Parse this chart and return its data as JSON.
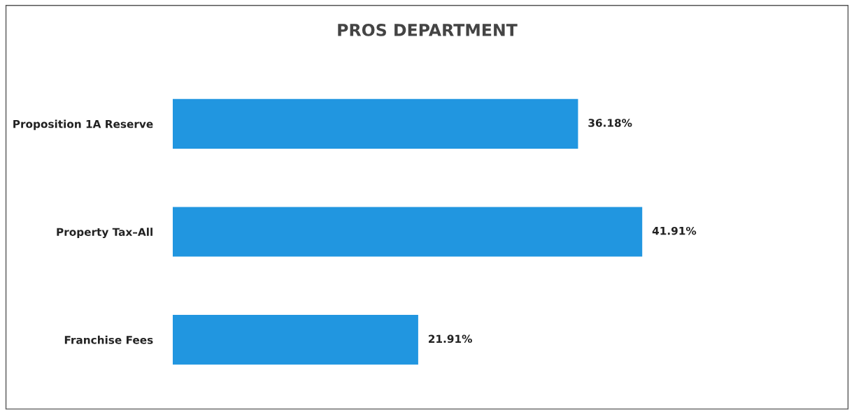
{
  "chart_data": {
    "type": "bar",
    "orientation": "horizontal",
    "title": "PROS DEPARTMENT",
    "categories": [
      "Proposition 1A Reserve",
      "Property Tax–All",
      "Franchise Fees"
    ],
    "values": [
      36.18,
      41.91,
      21.91
    ],
    "value_labels": [
      "36.18%",
      "41.91%",
      "21.91%"
    ],
    "color": "#2196e0",
    "grid": false,
    "legend": false,
    "tick_labels": "y"
  }
}
